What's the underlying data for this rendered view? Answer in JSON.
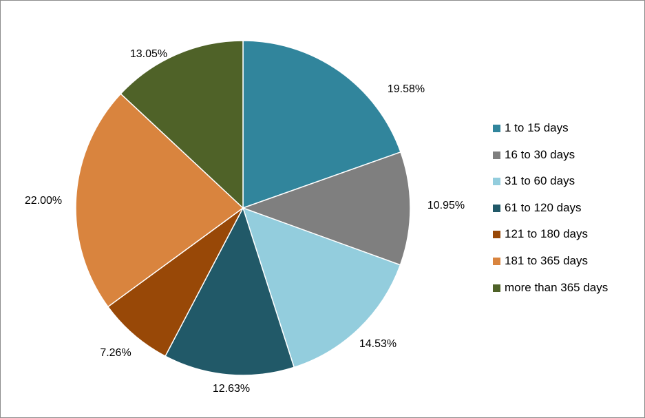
{
  "chart_data": {
    "type": "pie",
    "title": "",
    "start_angle": "12 o'clock",
    "direction": "clockwise",
    "legend_position": "right",
    "slices": [
      {
        "label": "1 to 15 days",
        "value": 19.58,
        "display": "19.58%",
        "color": "#31859c"
      },
      {
        "label": "16 to 30 days",
        "value": 10.95,
        "display": "10.95%",
        "color": "#7f7f7f"
      },
      {
        "label": "31 to 60 days",
        "value": 14.53,
        "display": "14.53%",
        "color": "#93cddd"
      },
      {
        "label": "61 to 120 days",
        "value": 12.63,
        "display": "12.63%",
        "color": "#215968"
      },
      {
        "label": "121 to 180 days",
        "value": 7.26,
        "display": "7.26%",
        "color": "#984807"
      },
      {
        "label": "181 to 365 days",
        "value": 22.0,
        "display": "22.00%",
        "color": "#d9843e"
      },
      {
        "label": "more than 365 days",
        "value": 13.05,
        "display": "13.05%",
        "color": "#4f6228"
      }
    ]
  }
}
